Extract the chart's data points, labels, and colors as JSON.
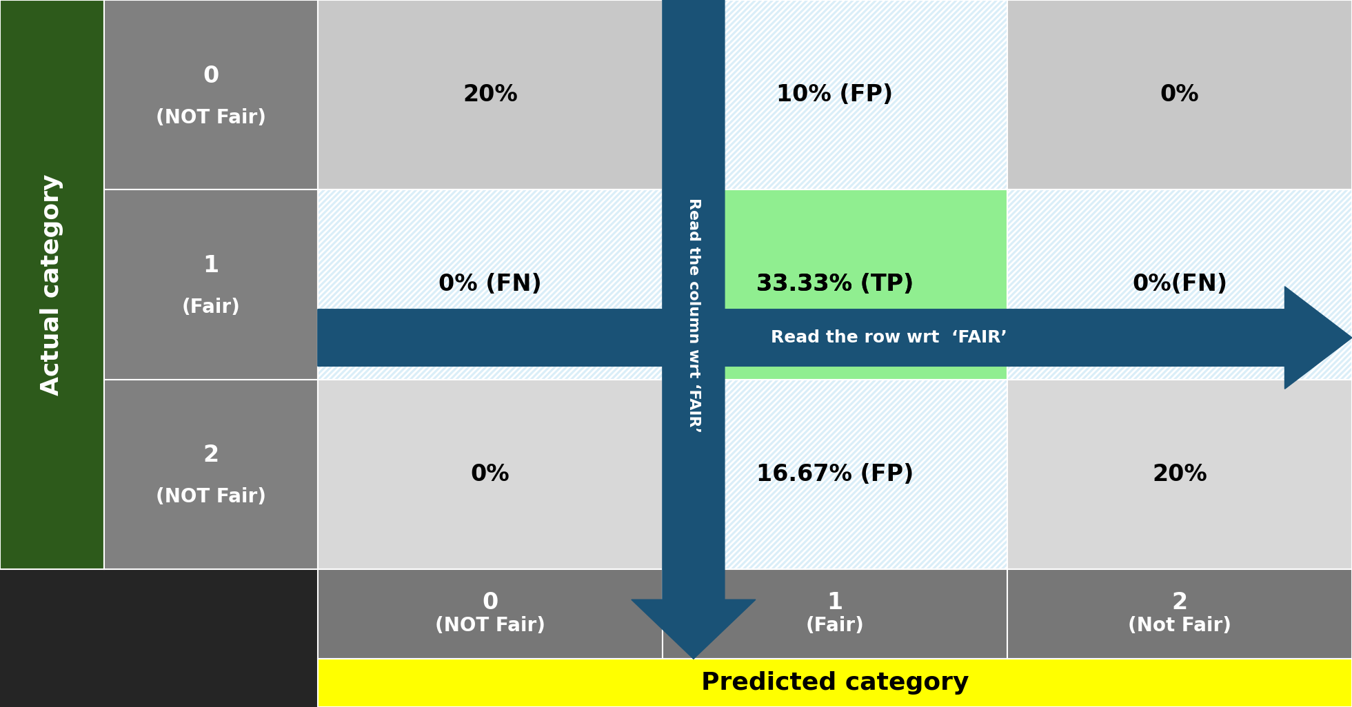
{
  "figsize": [
    19.61,
    10.26
  ],
  "dpi": 100,
  "cell_texts": [
    [
      "20%",
      "10% (FP)",
      "0%"
    ],
    [
      "0% (FN)",
      "33.33% (TP)",
      "0%(FN)"
    ],
    [
      "0%",
      "16.67% (FP)",
      "20%"
    ]
  ],
  "row_labels": [
    [
      "0",
      "(NOT Fair)"
    ],
    [
      "1",
      "(Fair)"
    ],
    [
      "2",
      "(NOT Fair)"
    ]
  ],
  "col_labels": [
    [
      "0",
      "(NOT Fair)"
    ],
    [
      "1",
      "(Fair)"
    ],
    [
      "2",
      "(Not Fair)"
    ]
  ],
  "actual_label": "Actual category",
  "predicted_label": "Predicted category",
  "col_arrow_text": "Read the column wrt ‘FAIR’",
  "row_arrow_text": "Read the row wrt  ‘FAIR’",
  "green_header_color": "#2d5a1b",
  "dark_bg_color": "#252525",
  "row_label_color": "#808080",
  "col_label_color": "#777777",
  "light_gray": "#c8c8c8",
  "lighter_gray": "#d8d8d8",
  "green_tp": "#90ee90",
  "arrow_blue": "#1a5276",
  "yellow": "#ffff00",
  "hatch_bg": "#daeef8",
  "hatch_color": "#a8d4e8",
  "hatch_linewidth": 2.0,
  "white": "#ffffff"
}
